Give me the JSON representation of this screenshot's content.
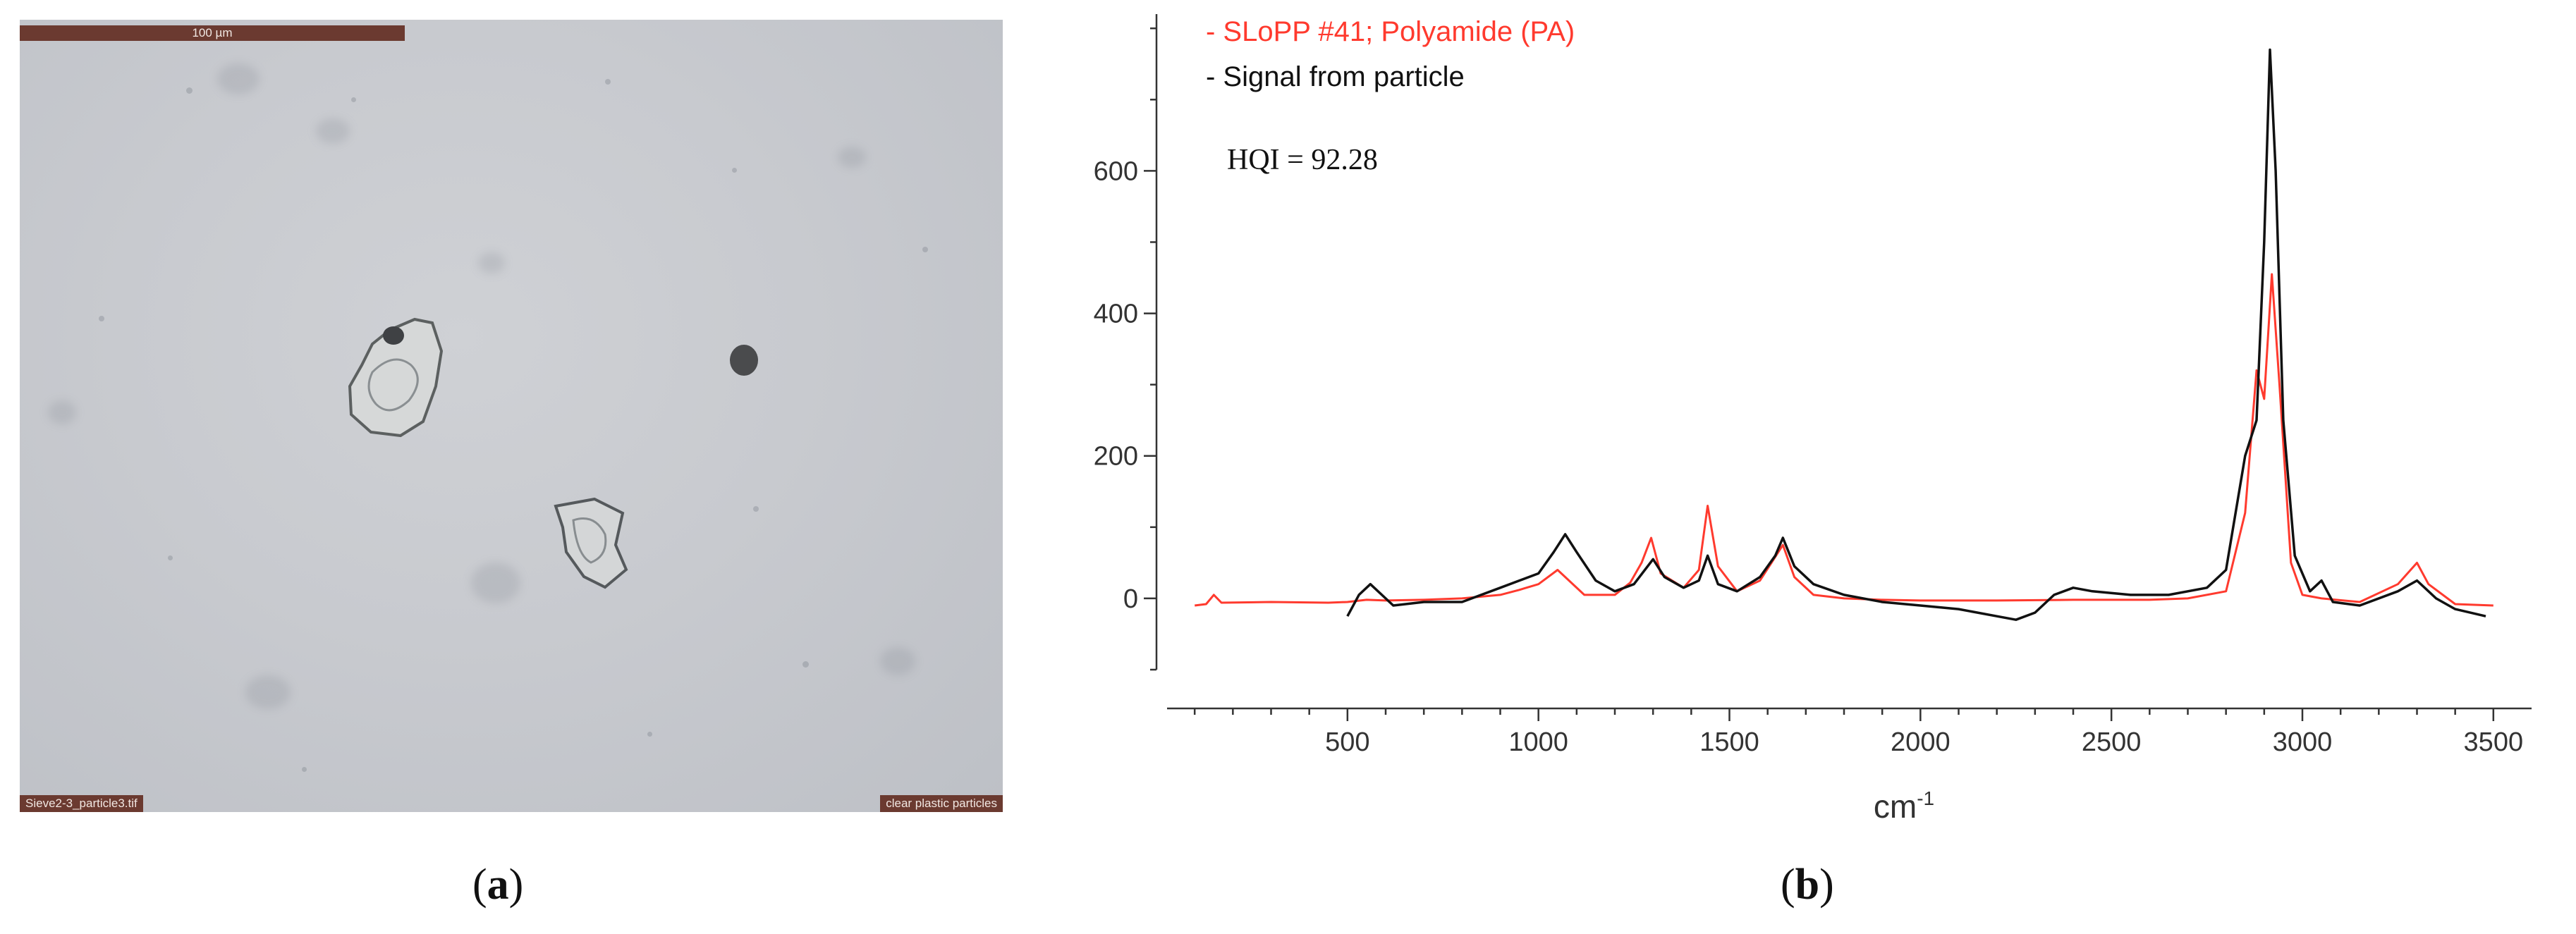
{
  "micrograph": {
    "scale_bar": "100 µm",
    "filename": "Sieve2-3_particle3.tif",
    "caption_tag": "clear plastic particles"
  },
  "panel_labels": {
    "a": "a",
    "b": "b"
  },
  "colors": {
    "reference": "#ff3a2e",
    "particle": "#111111",
    "tag_bg": "#6b3a30"
  },
  "chart_data": {
    "type": "line",
    "xlabel": "cm",
    "xlabel_superscript": "-1",
    "ylabel": "",
    "xlim": [
      0,
      3600
    ],
    "ylim": [
      -100,
      820
    ],
    "x_ticks": [
      500,
      1000,
      1500,
      2000,
      2500,
      3000,
      3500
    ],
    "y_ticks": [
      0,
      200,
      400,
      600
    ],
    "legend": [
      {
        "name": "- SLoPP #41; Polyamide (PA)",
        "color": "#ff3a2e"
      },
      {
        "name": "- Signal from particle",
        "color": "#111111"
      }
    ],
    "legend_position": "top-left",
    "annotation": "HQI = 92.28",
    "series": [
      {
        "name": "SLoPP #41; Polyamide (PA)",
        "color": "#ff3a2e",
        "points": [
          [
            100,
            -10
          ],
          [
            130,
            -8
          ],
          [
            150,
            5
          ],
          [
            170,
            -6
          ],
          [
            300,
            -5
          ],
          [
            450,
            -6
          ],
          [
            500,
            -5
          ],
          [
            550,
            -2
          ],
          [
            600,
            -3
          ],
          [
            700,
            -2
          ],
          [
            800,
            0
          ],
          [
            900,
            5
          ],
          [
            950,
            12
          ],
          [
            1000,
            20
          ],
          [
            1050,
            40
          ],
          [
            1080,
            25
          ],
          [
            1120,
            5
          ],
          [
            1200,
            5
          ],
          [
            1240,
            22
          ],
          [
            1270,
            50
          ],
          [
            1295,
            85
          ],
          [
            1320,
            35
          ],
          [
            1380,
            15
          ],
          [
            1420,
            40
          ],
          [
            1443,
            130
          ],
          [
            1470,
            45
          ],
          [
            1520,
            10
          ],
          [
            1580,
            25
          ],
          [
            1610,
            50
          ],
          [
            1640,
            75
          ],
          [
            1670,
            30
          ],
          [
            1720,
            5
          ],
          [
            1800,
            0
          ],
          [
            1900,
            -2
          ],
          [
            2000,
            -3
          ],
          [
            2200,
            -3
          ],
          [
            2400,
            -2
          ],
          [
            2600,
            -2
          ],
          [
            2700,
            0
          ],
          [
            2800,
            10
          ],
          [
            2850,
            120
          ],
          [
            2880,
            320
          ],
          [
            2900,
            280
          ],
          [
            2920,
            455
          ],
          [
            2940,
            300
          ],
          [
            2970,
            50
          ],
          [
            3000,
            5
          ],
          [
            3050,
            0
          ],
          [
            3150,
            -5
          ],
          [
            3250,
            20
          ],
          [
            3300,
            50
          ],
          [
            3330,
            20
          ],
          [
            3400,
            -8
          ],
          [
            3500,
            -10
          ]
        ]
      },
      {
        "name": "Signal from particle",
        "color": "#111111",
        "points": [
          [
            500,
            -25
          ],
          [
            530,
            5
          ],
          [
            560,
            20
          ],
          [
            590,
            5
          ],
          [
            620,
            -10
          ],
          [
            700,
            -5
          ],
          [
            800,
            -5
          ],
          [
            900,
            15
          ],
          [
            950,
            25
          ],
          [
            1000,
            35
          ],
          [
            1040,
            65
          ],
          [
            1070,
            90
          ],
          [
            1100,
            65
          ],
          [
            1150,
            25
          ],
          [
            1200,
            10
          ],
          [
            1250,
            20
          ],
          [
            1300,
            55
          ],
          [
            1330,
            30
          ],
          [
            1380,
            15
          ],
          [
            1420,
            25
          ],
          [
            1443,
            60
          ],
          [
            1470,
            20
          ],
          [
            1520,
            10
          ],
          [
            1580,
            30
          ],
          [
            1620,
            60
          ],
          [
            1640,
            85
          ],
          [
            1670,
            45
          ],
          [
            1720,
            20
          ],
          [
            1800,
            5
          ],
          [
            1900,
            -5
          ],
          [
            2000,
            -10
          ],
          [
            2100,
            -15
          ],
          [
            2200,
            -25
          ],
          [
            2250,
            -30
          ],
          [
            2300,
            -20
          ],
          [
            2350,
            5
          ],
          [
            2400,
            15
          ],
          [
            2450,
            10
          ],
          [
            2550,
            5
          ],
          [
            2650,
            5
          ],
          [
            2750,
            15
          ],
          [
            2800,
            40
          ],
          [
            2850,
            200
          ],
          [
            2880,
            250
          ],
          [
            2900,
            500
          ],
          [
            2915,
            770
          ],
          [
            2930,
            600
          ],
          [
            2950,
            250
          ],
          [
            2980,
            60
          ],
          [
            3020,
            10
          ],
          [
            3050,
            25
          ],
          [
            3080,
            -5
          ],
          [
            3150,
            -10
          ],
          [
            3250,
            10
          ],
          [
            3300,
            25
          ],
          [
            3350,
            0
          ],
          [
            3400,
            -15
          ],
          [
            3480,
            -25
          ]
        ]
      }
    ]
  }
}
